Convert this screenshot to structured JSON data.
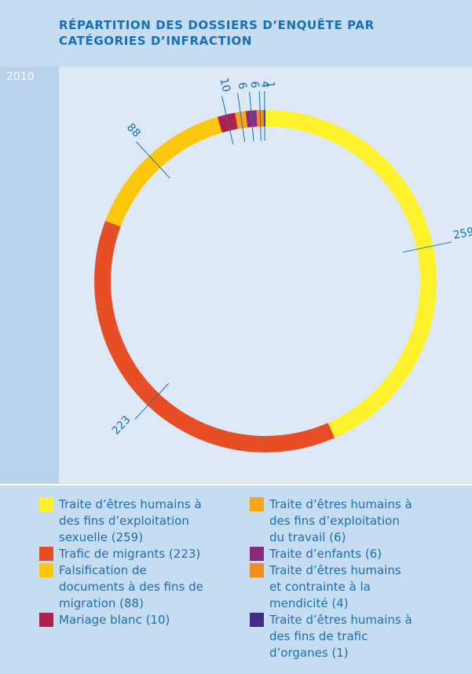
{
  "chart_data": {
    "type": "pie",
    "title": "RÉPARTITION DES DOSSIERS D’ENQUÊTE PAR CATÉGORIES D’INFRACTION",
    "year": "2010",
    "categories": [
      "Traite d’êtres humains à des fins d’exploitation sexuelle (259)",
      "Trafic de migrants (223)",
      "Falsification de documents à des fins de migration (88)",
      "Mariage blanc (10)",
      "Traite d’êtres humains à des fins d’exploitation du travail (6)",
      "Traite d’enfants (6)",
      "Traite d’êtres humains et contrainte à la mendicité (4)",
      "Traite d’êtres humains à des fins de trafic d’organes (1)"
    ],
    "values": [
      259,
      223,
      88,
      10,
      6,
      6,
      4,
      1
    ],
    "colors": [
      "#fff22d",
      "#e84e25",
      "#fdc70c",
      "#b11f4c",
      "#f8a51b",
      "#8e2a7e",
      "#f28c1e",
      "#432c86"
    ]
  }
}
